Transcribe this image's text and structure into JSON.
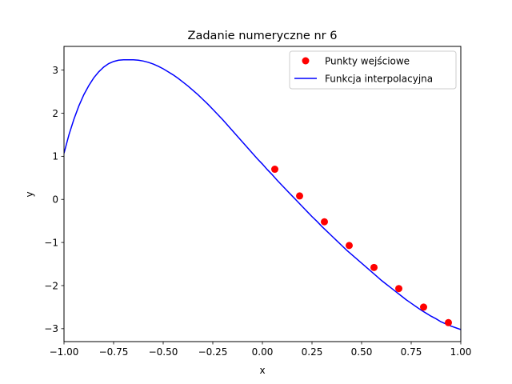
{
  "chart_data": {
    "type": "line",
    "title": "Zadanie numeryczne nr 6",
    "xlabel": "x",
    "ylabel": "y",
    "xlim": [
      -1.0,
      1.0
    ],
    "ylim": [
      -3.3,
      3.55
    ],
    "grid": false,
    "legend_position": "top-right",
    "x_ticks": [
      -1.0,
      -0.75,
      -0.5,
      -0.25,
      0.0,
      0.25,
      0.5,
      0.75,
      1.0
    ],
    "x_tick_labels": [
      "−1.00",
      "−0.75",
      "−0.50",
      "−0.25",
      "0.00",
      "0.25",
      "0.50",
      "0.75",
      "1.00"
    ],
    "y_ticks": [
      -3,
      -2,
      -1,
      0,
      1,
      2,
      3
    ],
    "y_tick_labels": [
      "−3",
      "−2",
      "−1",
      "0",
      "1",
      "2",
      "3"
    ],
    "series": [
      {
        "name": "Punkty wejściowe",
        "kind": "scatter",
        "color": "#ff0000",
        "x": [
          0.0625,
          0.1875,
          0.3125,
          0.4375,
          0.5625,
          0.6875,
          0.8125,
          0.9375
        ],
        "y": [
          0.7,
          0.08,
          -0.52,
          -1.07,
          -1.58,
          -2.07,
          -2.5,
          -2.86
        ]
      },
      {
        "name": "Funkcja interpolacyjna",
        "kind": "line",
        "color": "#0000ff",
        "x": [
          -1.0,
          -0.975,
          -0.95,
          -0.925,
          -0.9,
          -0.875,
          -0.85,
          -0.825,
          -0.8,
          -0.775,
          -0.75,
          -0.725,
          -0.7,
          -0.675,
          -0.65,
          -0.625,
          -0.6,
          -0.575,
          -0.55,
          -0.525,
          -0.5,
          -0.475,
          -0.45,
          -0.425,
          -0.4,
          -0.375,
          -0.35,
          -0.325,
          -0.3,
          -0.275,
          -0.25,
          -0.225,
          -0.2,
          -0.175,
          -0.15,
          -0.125,
          -0.1,
          -0.075,
          -0.05,
          -0.025,
          0.0,
          0.025,
          0.05,
          0.075,
          0.1,
          0.125,
          0.15,
          0.175,
          0.2,
          0.225,
          0.25,
          0.275,
          0.3,
          0.325,
          0.35,
          0.375,
          0.4,
          0.425,
          0.45,
          0.475,
          0.5,
          0.525,
          0.55,
          0.575,
          0.6,
          0.625,
          0.65,
          0.675,
          0.7,
          0.725,
          0.75,
          0.775,
          0.8,
          0.825,
          0.85,
          0.875,
          0.9,
          0.925,
          0.95,
          0.975,
          1.0
        ],
        "y": [
          1.07,
          1.5,
          1.86,
          2.17,
          2.43,
          2.64,
          2.82,
          2.96,
          3.07,
          3.15,
          3.2,
          3.23,
          3.24,
          3.24,
          3.24,
          3.23,
          3.21,
          3.18,
          3.14,
          3.09,
          3.03,
          2.96,
          2.89,
          2.81,
          2.72,
          2.63,
          2.53,
          2.43,
          2.32,
          2.21,
          2.09,
          1.97,
          1.85,
          1.72,
          1.59,
          1.46,
          1.33,
          1.2,
          1.07,
          0.94,
          0.82,
          0.69,
          0.57,
          0.44,
          0.32,
          0.2,
          0.08,
          -0.04,
          -0.16,
          -0.28,
          -0.4,
          -0.51,
          -0.63,
          -0.74,
          -0.85,
          -0.96,
          -1.07,
          -1.18,
          -1.28,
          -1.38,
          -1.48,
          -1.58,
          -1.68,
          -1.78,
          -1.88,
          -1.97,
          -2.06,
          -2.15,
          -2.24,
          -2.33,
          -2.41,
          -2.49,
          -2.57,
          -2.64,
          -2.71,
          -2.77,
          -2.84,
          -2.89,
          -2.94,
          -2.98,
          -3.02
        ]
      }
    ]
  }
}
